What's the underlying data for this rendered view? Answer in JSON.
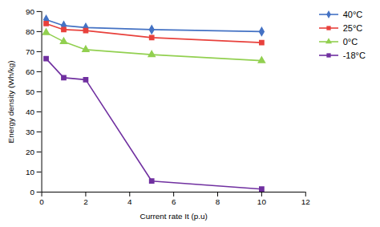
{
  "chart_data": {
    "type": "line",
    "xlabel": "Current rate It (p.u)",
    "ylabel": "Energy density (Wh/kg)",
    "x": [
      0.2,
      1,
      2,
      5,
      10
    ],
    "series": [
      {
        "name": "40°C",
        "color": "#4472C4",
        "marker": "diamond",
        "values": [
          86,
          83,
          82,
          81,
          80
        ]
      },
      {
        "name": "25°C",
        "color": "#E8413C",
        "marker": "square",
        "values": [
          84,
          81,
          80.5,
          77,
          74.5
        ]
      },
      {
        "name": "0°C",
        "color": "#92D050",
        "marker": "triangle",
        "values": [
          79.5,
          75,
          71,
          68.5,
          65.5
        ]
      },
      {
        "name": "-18°C",
        "color": "#7030A0",
        "marker": "square",
        "values": [
          66.5,
          57,
          56,
          5.5,
          1.5
        ]
      }
    ],
    "xlim": [
      0,
      12
    ],
    "ylim": [
      0,
      90
    ],
    "xticks": [
      0,
      2,
      4,
      6,
      8,
      10,
      12
    ],
    "yticks": [
      0,
      10,
      20,
      30,
      40,
      50,
      60,
      70,
      80,
      90
    ],
    "grid": false,
    "legend": "right"
  }
}
